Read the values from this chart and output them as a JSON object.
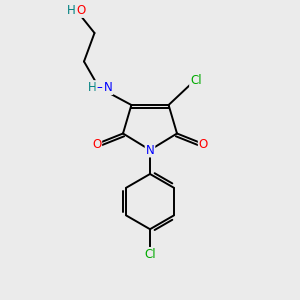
{
  "bg_color": "#ebebeb",
  "bond_color": "#000000",
  "atom_colors": {
    "N": "#0000ff",
    "O": "#ff0000",
    "Cl": "#00aa00",
    "H_teal": "#008080",
    "C": "#000000"
  },
  "figsize": [
    3.0,
    3.0
  ],
  "dpi": 100,
  "xlim": [
    0,
    10
  ],
  "ylim": [
    0,
    10
  ],
  "lw": 1.4,
  "font_size_atom": 8.5,
  "font_size_label": 8.0
}
